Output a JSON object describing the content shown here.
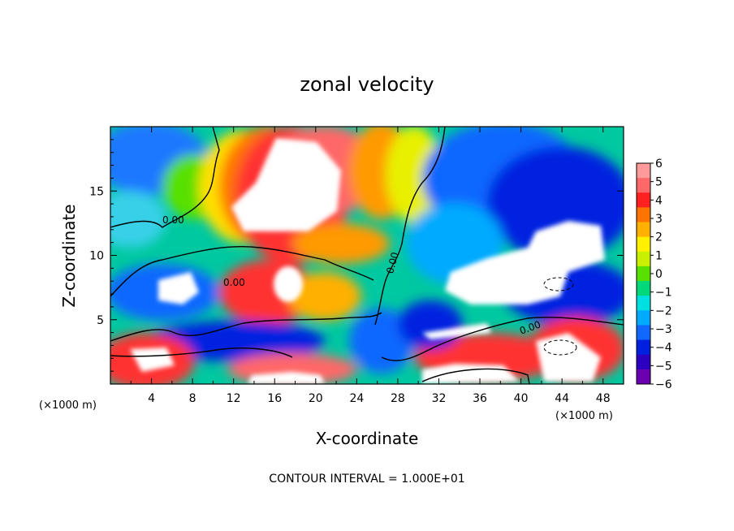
{
  "chart_data": {
    "type": "heatmap",
    "title": "zonal velocity",
    "xlabel": "X-coordinate",
    "ylabel": "Z-coordinate",
    "x_unit": "(×1000 m)",
    "y_unit": "(×1000 m)",
    "xlim": [
      0,
      50
    ],
    "ylim": [
      0,
      20
    ],
    "x_ticks": [
      "4",
      "8",
      "12",
      "16",
      "20",
      "24",
      "28",
      "32",
      "36",
      "40",
      "44",
      "48"
    ],
    "y_ticks": [
      "5",
      "10",
      "15"
    ],
    "colorbar": {
      "range": [
        -6,
        6
      ],
      "labels": [
        "6",
        "5",
        "4",
        "3",
        "2",
        "1",
        "0",
        "−1",
        "−2",
        "−3",
        "−4",
        "−5",
        "−6"
      ],
      "colors": [
        "#ff9a9a",
        "#ff6868",
        "#ff2020",
        "#ff7400",
        "#ffb000",
        "#fff000",
        "#c8f000",
        "#58e000",
        "#00d87a",
        "#00e0e0",
        "#00aaff",
        "#1068ff",
        "#0020e0",
        "#2c00c0",
        "#6a00b0"
      ]
    },
    "contour_labels": [
      "0.00",
      "0.00",
      "0.00",
      "0.00"
    ],
    "footer": "CONTOUR INTERVAL = 1.000E+01"
  }
}
